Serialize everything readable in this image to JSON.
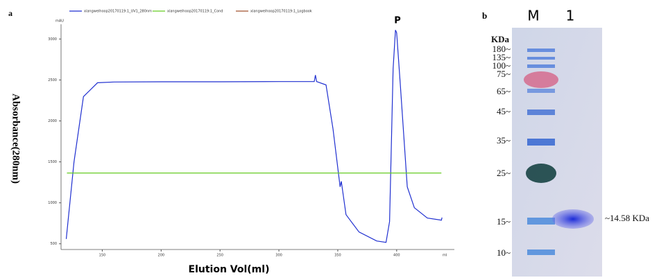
{
  "chart_data": {
    "type": "line",
    "panel_label": "a",
    "annotation": "P",
    "y_label": "Absorbance(280nm)",
    "x_label": "Elution Vol(ml)",
    "y_unit": "mAU",
    "x_unit": "ml",
    "xlim": [
      115,
      449
    ],
    "ylim": [
      430,
      3180
    ],
    "xticks": [
      150,
      200,
      250,
      300,
      350,
      400
    ],
    "yticks": [
      500,
      1000,
      1500,
      2000,
      2500,
      3000
    ],
    "series": [
      {
        "name": "xiangweihoop20170119:1_UV1_280nm",
        "color": "#1f2fd0",
        "x": [
          119.4,
          126,
          134,
          146,
          160,
          200,
          250,
          300,
          330,
          331,
          332,
          340,
          346,
          352,
          353,
          357,
          368,
          383,
          391,
          394,
          397,
          399,
          400,
          403,
          409,
          415,
          426,
          438,
          438.5
        ],
        "values": [
          559,
          1500,
          2297,
          2466,
          2475,
          2478,
          2478,
          2480,
          2480,
          2560,
          2480,
          2440,
          1900,
          1195,
          1263,
          856,
          644,
          534,
          517,
          771,
          2636,
          3110,
          3076,
          2466,
          1195,
          940,
          814,
          788,
          820
        ]
      },
      {
        "name": "xiangweihoop20170119:1_Cond",
        "color": "#66cc22",
        "x": [
          120,
          438
        ],
        "values": [
          1364,
          1364
        ]
      },
      {
        "name": "xiangweihoop20170119:1_Logbook",
        "color": "#a0522d",
        "x": [],
        "values": []
      }
    ]
  },
  "gel": {
    "panel_label": "b",
    "lanes": [
      "M",
      "1"
    ],
    "unit": "KDa",
    "markers": [
      "180~",
      "135~",
      "100~",
      "75~",
      "65~",
      "45~",
      "35~",
      "25~",
      "15~",
      "10~"
    ],
    "band_label": "~14.58 KDa"
  }
}
